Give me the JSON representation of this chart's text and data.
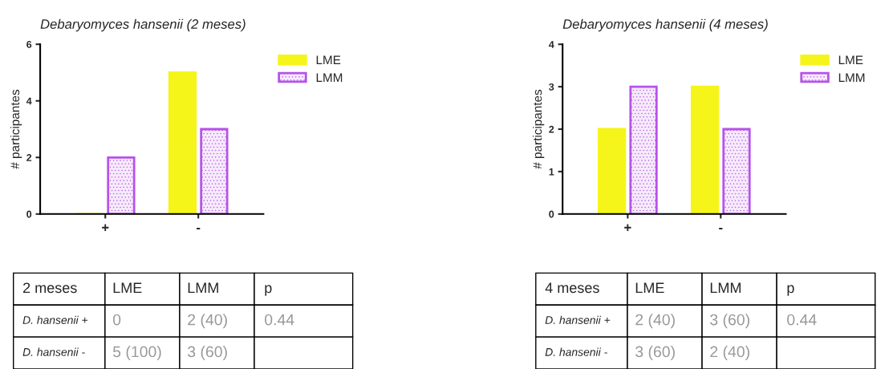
{
  "chart_data": [
    {
      "type": "bar",
      "title": "Debaryomyces hansenii (2 meses)",
      "ylabel": "# participantes",
      "categories": [
        "+",
        "-"
      ],
      "ylim": [
        0,
        6
      ],
      "yticks": [
        0,
        2,
        4,
        6
      ],
      "legend": "right",
      "grid": false,
      "series": [
        {
          "name": "LME",
          "color": "#f5f51a",
          "values": [
            0,
            5
          ]
        },
        {
          "name": "LMM",
          "color": "#b653e8",
          "values": [
            2,
            3
          ]
        }
      ],
      "annotations": [
        "2 meses",
        "LME",
        "LMM",
        "p",
        "D. hansenii +",
        "0",
        "2 (40)",
        "0.44",
        "D. hansenii -",
        "5 (100)",
        "3 (60)"
      ]
    },
    {
      "type": "bar",
      "title": "Debaryomyces hansenii (4 meses)",
      "ylabel": "# participantes",
      "categories": [
        "+",
        "-"
      ],
      "ylim": [
        0,
        4
      ],
      "yticks": [
        0,
        1,
        2,
        3,
        4
      ],
      "legend": "right",
      "grid": false,
      "series": [
        {
          "name": "LME",
          "color": "#f5f51a",
          "values": [
            2,
            3
          ]
        },
        {
          "name": "LMM",
          "color": "#b653e8",
          "values": [
            3,
            2
          ]
        }
      ],
      "annotations": [
        "4 meses",
        "LME",
        "LMM",
        "p",
        "D. hansenii +",
        "2 (40)",
        "3 (60)",
        "0.44",
        "D. hansenii -",
        "3 (60)",
        "2 (40)"
      ]
    }
  ]
}
